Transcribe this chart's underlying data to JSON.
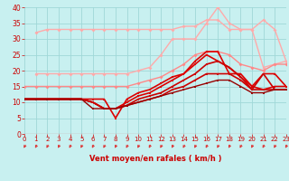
{
  "bg_color": "#c8f0f0",
  "grid_color": "#a0d8d8",
  "xlabel": "Vent moyen/en rafales ( km/h )",
  "xlabel_color": "#cc0000",
  "tick_color": "#cc0000",
  "arrow_color": "#dd3333",
  "xlim": [
    0,
    23
  ],
  "ylim": [
    0,
    40
  ],
  "yticks": [
    0,
    5,
    10,
    15,
    20,
    25,
    30,
    35,
    40
  ],
  "xticks": [
    0,
    1,
    2,
    3,
    4,
    5,
    6,
    7,
    8,
    9,
    10,
    11,
    12,
    13,
    14,
    15,
    16,
    17,
    18,
    19,
    20,
    21,
    22,
    23
  ],
  "series": [
    {
      "x": [
        1,
        2,
        3,
        4,
        5,
        6,
        7,
        8,
        9,
        10,
        11,
        12,
        13,
        14,
        15,
        16,
        17,
        18,
        19,
        20,
        21,
        22,
        23
      ],
      "y": [
        32,
        33,
        33,
        33,
        33,
        33,
        33,
        33,
        33,
        33,
        33,
        33,
        33,
        34,
        34,
        36,
        36,
        33,
        33,
        33,
        36,
        33,
        23
      ],
      "color": "#ffaaaa",
      "marker": "D",
      "markersize": 2,
      "linewidth": 1.0,
      "zorder": 2
    },
    {
      "x": [
        1,
        2,
        3,
        4,
        5,
        6,
        7,
        8,
        9,
        10,
        11,
        12,
        13,
        14,
        15,
        16,
        17,
        18,
        19,
        20,
        21,
        22,
        23
      ],
      "y": [
        19,
        19,
        19,
        19,
        19,
        19,
        19,
        19,
        19,
        20,
        21,
        25,
        30,
        30,
        30,
        35,
        40,
        35,
        33,
        33,
        21,
        22,
        23
      ],
      "color": "#ffaaaa",
      "marker": "D",
      "markersize": 2,
      "linewidth": 1.0,
      "zorder": 2
    },
    {
      "x": [
        0,
        1,
        2,
        3,
        4,
        5,
        6,
        7,
        8,
        9,
        10,
        11,
        12,
        13,
        14,
        15,
        16,
        17,
        18,
        19,
        20,
        21,
        22,
        23
      ],
      "y": [
        15,
        15,
        15,
        15,
        15,
        15,
        15,
        15,
        15,
        15,
        16,
        17,
        18,
        20,
        22,
        25,
        26,
        26,
        25,
        22,
        21,
        20,
        22,
        22
      ],
      "color": "#ff8888",
      "marker": "D",
      "markersize": 2,
      "linewidth": 1.0,
      "zorder": 2
    },
    {
      "x": [
        0,
        1,
        2,
        3,
        4,
        5,
        6,
        7,
        8,
        9,
        10,
        11,
        12,
        13,
        14,
        15,
        16,
        17,
        18,
        19,
        20,
        21,
        22,
        23
      ],
      "y": [
        11,
        11,
        11,
        11,
        11,
        11,
        11,
        11,
        5,
        11,
        13,
        14,
        16,
        18,
        19,
        23,
        26,
        26,
        19,
        19,
        15,
        19,
        19,
        15
      ],
      "color": "#dd0000",
      "marker": "s",
      "markersize": 2,
      "linewidth": 1.2,
      "zorder": 3
    },
    {
      "x": [
        0,
        1,
        2,
        3,
        4,
        5,
        6,
        7,
        8,
        9,
        10,
        11,
        12,
        13,
        14,
        15,
        16,
        17,
        18,
        19,
        20,
        21,
        22,
        23
      ],
      "y": [
        11,
        11,
        11,
        11,
        11,
        11,
        10,
        8,
        8,
        10,
        12,
        13,
        15,
        17,
        19,
        22,
        25,
        23,
        21,
        18,
        15,
        14,
        15,
        15
      ],
      "color": "#dd0000",
      "marker": "s",
      "markersize": 2,
      "linewidth": 1.2,
      "zorder": 3
    },
    {
      "x": [
        0,
        1,
        2,
        3,
        4,
        5,
        6,
        7,
        8,
        9,
        10,
        11,
        12,
        13,
        14,
        15,
        16,
        17,
        18,
        19,
        20,
        21,
        22,
        23
      ],
      "y": [
        11,
        11,
        11,
        11,
        11,
        11,
        10,
        8,
        8,
        9,
        11,
        12,
        13,
        15,
        17,
        19,
        22,
        23,
        21,
        18,
        14,
        14,
        14,
        14
      ],
      "color": "#cc0000",
      "marker": "s",
      "markersize": 2,
      "linewidth": 1.2,
      "zorder": 3
    },
    {
      "x": [
        0,
        1,
        2,
        3,
        4,
        5,
        6,
        7,
        8,
        9,
        10,
        11,
        12,
        13,
        14,
        15,
        16,
        17,
        18,
        19,
        20,
        21,
        22,
        23
      ],
      "y": [
        11,
        11,
        11,
        11,
        11,
        11,
        10,
        8,
        8,
        9,
        10,
        11,
        12,
        14,
        15,
        17,
        19,
        19,
        19,
        17,
        14,
        19,
        14,
        14
      ],
      "color": "#cc0000",
      "marker": "s",
      "markersize": 2,
      "linewidth": 1.2,
      "zorder": 3
    },
    {
      "x": [
        0,
        1,
        2,
        3,
        4,
        5,
        6,
        7,
        8,
        9,
        10,
        11,
        12,
        13,
        14,
        15,
        16,
        17,
        18,
        19,
        20,
        21,
        22,
        23
      ],
      "y": [
        11,
        11,
        11,
        11,
        11,
        11,
        8,
        8,
        8,
        9,
        10,
        11,
        12,
        13,
        14,
        15,
        16,
        17,
        17,
        15,
        13,
        13,
        14,
        14
      ],
      "color": "#990000",
      "marker": "s",
      "markersize": 2,
      "linewidth": 1.0,
      "zorder": 3
    }
  ]
}
